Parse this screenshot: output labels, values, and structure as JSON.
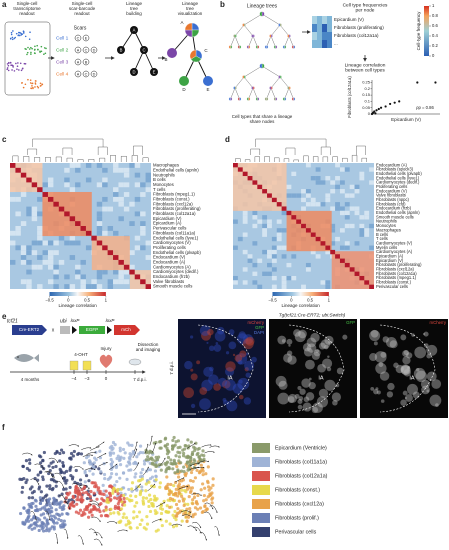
{
  "a": {
    "label": "a",
    "steps": [
      [
        "Single-cell",
        "transcriptome",
        "readout"
      ],
      [
        "Single-cell",
        "scar-barcode",
        "readout"
      ],
      [
        "Lineage",
        "tree",
        "building"
      ],
      [
        "Lineage",
        "tree",
        "visualization"
      ]
    ],
    "scars_title": "Scars",
    "cells": [
      {
        "name": "Cell 1",
        "color": "#3b6fd1",
        "scars": [
          "C",
          "E"
        ]
      },
      {
        "name": "Cell 2",
        "color": "#3da345",
        "scars": [
          "A",
          "C",
          "D"
        ]
      },
      {
        "name": "Cell 3",
        "color": "#7b46a8",
        "scars": [
          "A",
          "B"
        ]
      },
      {
        "name": "Cell 4",
        "color": "#e8772e",
        "scars": [
          "A",
          "C",
          "D"
        ]
      }
    ],
    "tree_nodes": [
      "A",
      "B",
      "C",
      "D",
      "E"
    ]
  },
  "b": {
    "label": "b",
    "trees_title": "Lineage trees",
    "trees_caption": [
      "Cell types that share a lineage",
      "share nodes"
    ],
    "freq_title": [
      "Cell type frequencies",
      "per node"
    ],
    "freq_rows": [
      "Epicardium (V)",
      "Fibroblasts (proliferating)",
      "Fibroblasts (col12a1a)",
      "..."
    ],
    "colorbar": {
      "title": "Cell-type frequency",
      "lim": [
        0,
        1
      ],
      "ticks": [
        0,
        0.2,
        0.4,
        0.6,
        0.8,
        1
      ]
    },
    "corr_title": [
      "Lineage correlation",
      "between cell types"
    ],
    "scatter": {
      "type": "scatter",
      "ylabel": "Fibroblasts (col12a1a)",
      "xlabel": "Epicardium (V)",
      "annotation": "ρp = 0.86",
      "x": [
        0,
        0.005,
        0.01,
        0.015,
        0.02,
        0.03,
        0.04,
        0.06,
        0.08,
        0.1,
        0.12,
        0.2,
        0.28
      ],
      "y": [
        0,
        0.01,
        0.02,
        0.005,
        0.03,
        0.04,
        0.05,
        0.06,
        0.08,
        0.09,
        0.1,
        0.25,
        0.25
      ],
      "xlim": [
        0,
        0.3
      ],
      "ylim": [
        0,
        0.27
      ],
      "yticks": [
        0,
        0.05,
        0.1,
        0.15,
        0.2,
        0.25
      ]
    }
  },
  "c": {
    "label": "c",
    "rows": [
      "Macrophages",
      "Endothelial cells (apnln)",
      "Neutrophils",
      "B cells",
      "Monocytes",
      "T cells",
      "Fibroblasts (mpeg1.1)",
      "Fibroblasts (const.)",
      "Fibroblasts (cxcl12a)",
      "Fibroblasts (proliferating)",
      "Fibroblasts (col12a1a)",
      "Epicardium (V)",
      "Epicardium (A)",
      "Perivascular cells",
      "Fibroblasts (col11a1a)",
      "Endothelial cells (lyve1)",
      "Cardiomyocytes (V)",
      "Proliferating cells",
      "Endothelial cells (plvapb)",
      "Endocardium (V)",
      "Endocardium (A)",
      "Cardiomyocytes (A)",
      "Cardiomyocytes (dedif.)",
      "Endocardium (frzb)",
      "Valve fibroblasts",
      "Smooth muscle cells"
    ],
    "colorbar": {
      "title": "Lineage correlation",
      "lim": [
        -0.5,
        1
      ],
      "ticks": [
        {
          "value": -0.5,
          "label": "−0.5"
        },
        0,
        0.5,
        1
      ]
    }
  },
  "d": {
    "label": "d",
    "rows": [
      "Endocardium (A)",
      "Fibroblasts (spock3)",
      "Endothelial cells (plvapb)",
      "Endothelial cells (lyve1)",
      "Cardiomyocytes (dedif.)",
      "Proliferating cells",
      "Endocardium (V)",
      "Valve fibroblasts",
      "Fibroblasts (nppc)",
      "Fibroblasts (cfd)",
      "Endocardium (frzb)",
      "Endothelial cells (apnln)",
      "Smooth muscle cells",
      "Neutrophils",
      "Monocytes",
      "Macrophages",
      "B cells",
      "T cells",
      "Cardiomyocytes (V)",
      "Myelin cells",
      "Cardiomyocytes (A)",
      "Epicardium (A)",
      "Epicardium (V)",
      "Fibroblasts (proliferating)",
      "Fibroblasts (cxcl12a)",
      "Fibroblasts (col12a1a)",
      "Fibroblasts (mpeg1.1)",
      "Fibroblasts (const.)",
      "Perivascular cells"
    ],
    "colorbar": {
      "title": "Lineage correlation",
      "lim": [
        -0.5,
        1
      ],
      "ticks": [
        {
          "value": -0.5,
          "label": "−0.5"
        },
        0,
        0.5,
        1
      ]
    }
  },
  "e": {
    "label": "e",
    "gene": "tcf21",
    "driver": "Cre-ERT2",
    "cross": "x",
    "promoter": "ubi",
    "loxp": "loxP",
    "reporter1": "EGFP",
    "reporter2": "mCh",
    "age": "4 months",
    "drug": "4-OHT",
    "days": [
      "−4",
      "−3",
      "0"
    ],
    "injury": "Injury",
    "dissection": [
      "Dissection",
      "and imaging"
    ],
    "endpoint": "7 d.p.i.",
    "image_title": "Tg(tcf21:Cre-ERT2; ubi:Switch)",
    "image_side": "7 d.p.i.",
    "channels": [
      [
        "mCherry",
        "GFP",
        "DAPI"
      ],
      [
        "GFP"
      ],
      [
        "mCherry"
      ]
    ],
    "region": "IA"
  },
  "f": {
    "label": "f",
    "legend": [
      {
        "name": "Epicardium (Ventricle)",
        "color": "#8a9a6a"
      },
      {
        "name": "Fibroblasts (col11a1a)",
        "color": "#9fb3d6"
      },
      {
        "name": "Fibroblasts (col12a1a)",
        "color": "#d9544d"
      },
      {
        "name": "Fibroblasts (const.)",
        "color": "#e7d94b"
      },
      {
        "name": "Fibroblasts (cxcl12a)",
        "color": "#e8a24a"
      },
      {
        "name": "Fibroblasts (prolif.)",
        "color": "#6b7fb5"
      },
      {
        "name": "Perivascular cells",
        "color": "#34406e"
      }
    ]
  }
}
